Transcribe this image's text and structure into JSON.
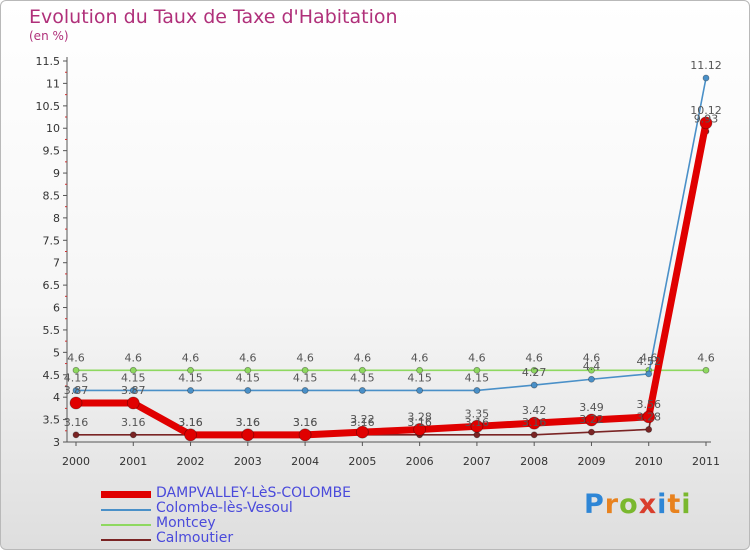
{
  "chart_data": {
    "type": "line",
    "title": "Evolution du Taux de Taxe d'Habitation",
    "ylabel": "(en %)",
    "xlabel": "",
    "ylim": [
      3,
      11.5
    ],
    "yticks": [
      "3",
      "3.5",
      "4",
      "4.5",
      "5",
      "5.5",
      "6",
      "6.5",
      "7",
      "7.5",
      "8",
      "8.5",
      "9",
      "9.5",
      "10",
      "10.5",
      "11",
      "11.5"
    ],
    "categories": [
      "2000",
      "2001",
      "2002",
      "2003",
      "2004",
      "2005",
      "2006",
      "2007",
      "2008",
      "2009",
      "2010",
      "2011"
    ],
    "series": [
      {
        "name": "DAMPVALLEY-LèS-COLOMBE",
        "color": "#e00000",
        "values": [
          3.87,
          3.87,
          3.16,
          3.16,
          3.16,
          3.22,
          3.28,
          3.35,
          3.42,
          3.49,
          3.56,
          10.12
        ],
        "labels": [
          "3.87",
          "3.87",
          "3.16",
          "3.16",
          "3.16",
          "3.22",
          "3.28",
          "3.35",
          "3.42",
          "3.49",
          "3.56",
          "10.12"
        ]
      },
      {
        "name": "Colombe-lès-Vesoul",
        "color": "#4a90c8",
        "values": [
          4.15,
          4.15,
          4.15,
          4.15,
          4.15,
          4.15,
          4.15,
          4.15,
          4.27,
          4.4,
          4.52,
          11.12
        ],
        "labels": [
          "4.15",
          "4.15",
          "4.15",
          "4.15",
          "4.15",
          "4.15",
          "4.15",
          "4.15",
          "4.27",
          "4.4",
          "4.52",
          "11.12"
        ]
      },
      {
        "name": "Montcey",
        "color": "#8ed860",
        "values": [
          4.6,
          4.6,
          4.6,
          4.6,
          4.6,
          4.6,
          4.6,
          4.6,
          4.6,
          4.6,
          4.6,
          4.6
        ],
        "labels": [
          "4.6",
          "4.6",
          "4.6",
          "4.6",
          "4.6",
          "4.6",
          "4.6",
          "4.6",
          "4.6",
          "4.6",
          "4.6",
          "4.6"
        ]
      },
      {
        "name": "Calmoutier",
        "color": "#7a2424",
        "values": [
          3.16,
          3.16,
          3.16,
          3.16,
          3.16,
          3.16,
          3.16,
          3.16,
          3.16,
          3.22,
          3.28,
          9.93
        ],
        "labels": [
          "3.16",
          "3.16",
          "3.16",
          "3.16",
          "3.16",
          "3.16",
          "3.16",
          "3.16",
          "3.16",
          "3.22",
          "3.28",
          "9.93"
        ]
      }
    ]
  },
  "logo": {
    "letters": [
      "P",
      "r",
      "o",
      "x",
      "i",
      "t",
      "i"
    ],
    "colors": [
      "#2e86d6",
      "#e8821e",
      "#7ab82e",
      "#d93e2c",
      "#2e86d6",
      "#e8821e",
      "#7ab82e"
    ]
  }
}
